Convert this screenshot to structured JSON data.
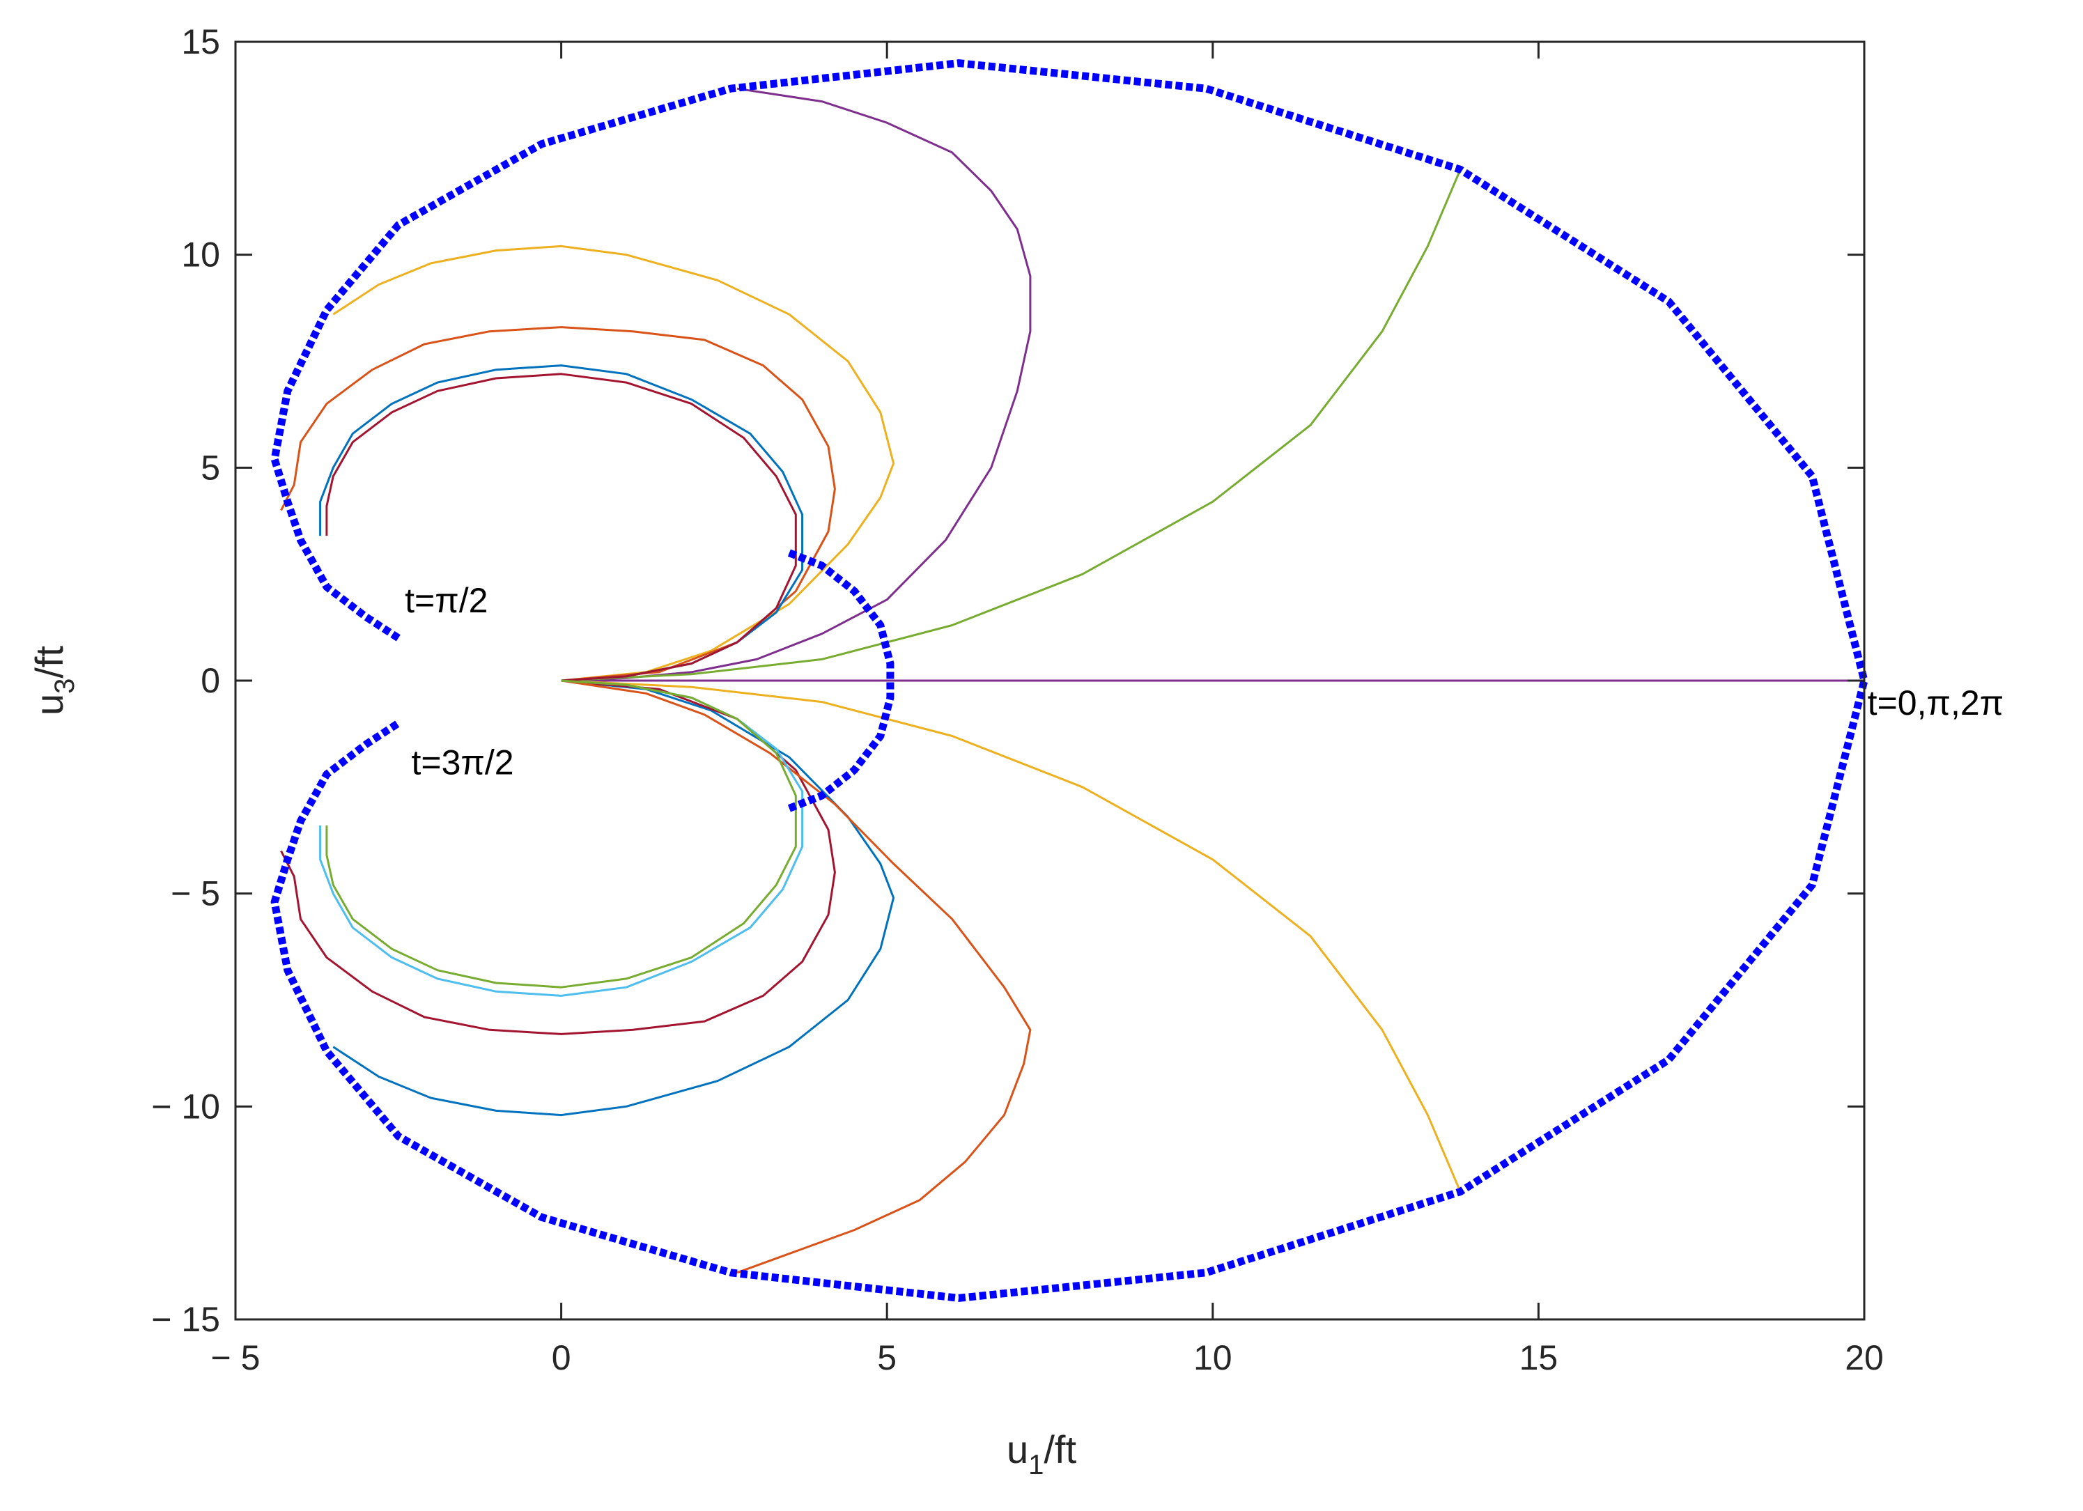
{
  "chart_data": {
    "type": "line",
    "xlabel": "u",
    "xlabel_sub": "1",
    "xlabel_unit": "/ft",
    "ylabel": "u",
    "ylabel_sub": "3",
    "ylabel_unit": "/ft",
    "xlim": [
      -5,
      20
    ],
    "ylim": [
      -15,
      15
    ],
    "x_ticks": [
      -5,
      0,
      5,
      10,
      15,
      20
    ],
    "y_ticks": [
      -15,
      -10,
      -5,
      0,
      5,
      10,
      15
    ],
    "x_tick_labels": [
      "− 5",
      "0",
      "5",
      "10",
      "15",
      "20"
    ],
    "y_tick_labels": [
      "− 15",
      "− 10",
      "− 5",
      "0",
      "5",
      "10",
      "15"
    ],
    "grid": false,
    "annotations": [
      {
        "text": "t=π/2",
        "x": -2.4,
        "y": 1.6
      },
      {
        "text": "t=3π/2",
        "x": -2.3,
        "y": -2.2
      },
      {
        "text": "t=0,π,2π",
        "x": 20.05,
        "y": -0.8
      }
    ],
    "series": [
      {
        "color": "#7E2F8E",
        "dashed": false,
        "points": [
          [
            0,
            0
          ],
          [
            0.5,
            0.03
          ],
          [
            1,
            0.06
          ],
          [
            2,
            0.2
          ],
          [
            3,
            0.5
          ],
          [
            4,
            1.1
          ],
          [
            5,
            1.9
          ],
          [
            5.9,
            3.3
          ],
          [
            6.6,
            5
          ],
          [
            7.0,
            6.8
          ],
          [
            7.2,
            8.2
          ],
          [
            7.2,
            9.5
          ],
          [
            7.0,
            10.6
          ],
          [
            6.6,
            11.5
          ],
          [
            6.0,
            12.4
          ],
          [
            5.0,
            13.1
          ],
          [
            4.0,
            13.6
          ],
          [
            2.7,
            13.9
          ]
        ]
      },
      {
        "color": "#7E2F8E",
        "dashed": false,
        "points": [
          [
            0,
            0
          ],
          [
            20,
            0
          ]
        ]
      },
      {
        "color": "#77AC30",
        "dashed": false,
        "points": [
          [
            0,
            0
          ],
          [
            2,
            0.15
          ],
          [
            4,
            0.5
          ],
          [
            6,
            1.3
          ],
          [
            8,
            2.5
          ],
          [
            10,
            4.2
          ],
          [
            11.5,
            6
          ],
          [
            12.6,
            8.2
          ],
          [
            13.3,
            10.2
          ],
          [
            13.8,
            12.0
          ]
        ]
      },
      {
        "color": "#EDB120",
        "dashed": false,
        "points": [
          [
            0,
            0
          ],
          [
            2,
            -0.15
          ],
          [
            4,
            -0.5
          ],
          [
            6,
            -1.3
          ],
          [
            8,
            -2.5
          ],
          [
            10,
            -4.2
          ],
          [
            11.5,
            -6
          ],
          [
            12.6,
            -8.2
          ],
          [
            13.3,
            -10.2
          ],
          [
            13.8,
            -12.0
          ]
        ]
      },
      {
        "color": "#EDB120",
        "dashed": false,
        "points": [
          [
            0,
            0
          ],
          [
            1.3,
            0.2
          ],
          [
            2.3,
            0.7
          ],
          [
            3.5,
            1.8
          ],
          [
            4.4,
            3.2
          ],
          [
            4.9,
            4.3
          ],
          [
            5.1,
            5.1
          ],
          [
            4.9,
            6.3
          ],
          [
            4.4,
            7.5
          ],
          [
            3.5,
            8.6
          ],
          [
            2.4,
            9.4
          ],
          [
            1.0,
            10.0
          ],
          [
            0,
            10.2
          ],
          [
            -1.0,
            10.1
          ],
          [
            -2.0,
            9.8
          ],
          [
            -2.8,
            9.3
          ],
          [
            -3.5,
            8.6
          ]
        ]
      },
      {
        "color": "#0072BD",
        "dashed": false,
        "points": [
          [
            0,
            0
          ],
          [
            1.3,
            -0.2
          ],
          [
            2.3,
            -0.7
          ],
          [
            3.5,
            -1.8
          ],
          [
            4.4,
            -3.2
          ],
          [
            4.9,
            -4.3
          ],
          [
            5.1,
            -5.1
          ],
          [
            4.9,
            -6.3
          ],
          [
            4.4,
            -7.5
          ],
          [
            3.5,
            -8.6
          ],
          [
            2.4,
            -9.4
          ],
          [
            1.0,
            -10.0
          ],
          [
            0,
            -10.2
          ],
          [
            -1.0,
            -10.1
          ],
          [
            -2.0,
            -9.8
          ],
          [
            -2.8,
            -9.3
          ],
          [
            -3.5,
            -8.6
          ]
        ]
      },
      {
        "color": "#D95319",
        "dashed": false,
        "points": [
          [
            0,
            0
          ],
          [
            1.5,
            0.2
          ],
          [
            2.7,
            0.9
          ],
          [
            3.6,
            2.1
          ],
          [
            4.1,
            3.5
          ],
          [
            4.2,
            4.5
          ],
          [
            4.1,
            5.5
          ],
          [
            3.7,
            6.6
          ],
          [
            3.1,
            7.4
          ],
          [
            2.2,
            8.0
          ],
          [
            1.1,
            8.2
          ],
          [
            0,
            8.3
          ],
          [
            -1.1,
            8.2
          ],
          [
            -2.1,
            7.9
          ],
          [
            -2.9,
            7.3
          ],
          [
            -3.6,
            6.5
          ],
          [
            -4.0,
            5.6
          ],
          [
            -4.1,
            4.6
          ],
          [
            -4.3,
            4.0
          ]
        ]
      },
      {
        "color": "#A2142F",
        "dashed": false,
        "points": [
          [
            0,
            0
          ],
          [
            1.5,
            -0.2
          ],
          [
            2.7,
            -0.9
          ],
          [
            3.6,
            -2.1
          ],
          [
            4.1,
            -3.5
          ],
          [
            4.2,
            -4.5
          ],
          [
            4.1,
            -5.5
          ],
          [
            3.7,
            -6.6
          ],
          [
            3.1,
            -7.4
          ],
          [
            2.2,
            -8.0
          ],
          [
            1.1,
            -8.2
          ],
          [
            0,
            -8.3
          ],
          [
            -1.1,
            -8.2
          ],
          [
            -2.1,
            -7.9
          ],
          [
            -2.9,
            -7.3
          ],
          [
            -3.6,
            -6.5
          ],
          [
            -4.0,
            -5.6
          ],
          [
            -4.1,
            -4.6
          ],
          [
            -4.3,
            -4.0
          ]
        ]
      },
      {
        "color": "#D95319",
        "dashed": false,
        "points": [
          [
            0,
            0
          ],
          [
            1.3,
            -0.3
          ],
          [
            2.2,
            -0.8
          ],
          [
            3.2,
            -1.7
          ],
          [
            4.2,
            -2.9
          ],
          [
            5.1,
            -4.3
          ],
          [
            6.0,
            -5.6
          ],
          [
            6.8,
            -7.2
          ],
          [
            7.2,
            -8.2
          ],
          [
            7.1,
            -9.0
          ],
          [
            6.8,
            -10.2
          ],
          [
            6.2,
            -11.3
          ],
          [
            5.5,
            -12.2
          ],
          [
            4.5,
            -12.9
          ],
          [
            3.6,
            -13.4
          ],
          [
            2.7,
            -13.9
          ]
        ]
      },
      {
        "color": "#0072BD",
        "dashed": false,
        "points": [
          [
            0,
            0
          ],
          [
            1,
            0.1
          ],
          [
            2,
            0.4
          ],
          [
            2.7,
            0.9
          ],
          [
            3.3,
            1.6
          ],
          [
            3.7,
            2.6
          ],
          [
            3.7,
            3.9
          ],
          [
            3.4,
            4.9
          ],
          [
            2.9,
            5.8
          ],
          [
            2.0,
            6.6
          ],
          [
            1.0,
            7.2
          ],
          [
            0,
            7.4
          ],
          [
            -1.0,
            7.3
          ],
          [
            -1.9,
            7.0
          ],
          [
            -2.6,
            6.5
          ],
          [
            -3.2,
            5.8
          ],
          [
            -3.5,
            5.0
          ],
          [
            -3.7,
            4.2
          ],
          [
            -3.7,
            3.4
          ]
        ]
      },
      {
        "color": "#4DBEEE",
        "dashed": false,
        "points": [
          [
            0,
            0
          ],
          [
            1,
            -0.1
          ],
          [
            2,
            -0.4
          ],
          [
            2.7,
            -0.9
          ],
          [
            3.3,
            -1.6
          ],
          [
            3.7,
            -2.6
          ],
          [
            3.7,
            -3.9
          ],
          [
            3.4,
            -4.9
          ],
          [
            2.9,
            -5.8
          ],
          [
            2.0,
            -6.6
          ],
          [
            1.0,
            -7.2
          ],
          [
            0,
            -7.4
          ],
          [
            -1.0,
            -7.3
          ],
          [
            -1.9,
            -7.0
          ],
          [
            -2.6,
            -6.5
          ],
          [
            -3.2,
            -5.8
          ],
          [
            -3.5,
            -5.0
          ],
          [
            -3.7,
            -4.2
          ],
          [
            -3.7,
            -3.4
          ]
        ]
      },
      {
        "color": "#A2142F",
        "dashed": false,
        "points": [
          [
            0,
            0
          ],
          [
            1,
            0.1
          ],
          [
            2,
            0.4
          ],
          [
            2.7,
            0.9
          ],
          [
            3.3,
            1.7
          ],
          [
            3.6,
            2.7
          ],
          [
            3.6,
            3.9
          ],
          [
            3.3,
            4.8
          ],
          [
            2.8,
            5.7
          ],
          [
            2.0,
            6.5
          ],
          [
            1.0,
            7.0
          ],
          [
            0,
            7.2
          ],
          [
            -1.0,
            7.1
          ],
          [
            -1.9,
            6.8
          ],
          [
            -2.6,
            6.3
          ],
          [
            -3.2,
            5.6
          ],
          [
            -3.5,
            4.8
          ],
          [
            -3.6,
            4.1
          ],
          [
            -3.6,
            3.4
          ]
        ]
      },
      {
        "color": "#77AC30",
        "dashed": false,
        "points": [
          [
            0,
            0
          ],
          [
            1,
            -0.1
          ],
          [
            2,
            -0.4
          ],
          [
            2.7,
            -0.9
          ],
          [
            3.3,
            -1.7
          ],
          [
            3.6,
            -2.7
          ],
          [
            3.6,
            -3.9
          ],
          [
            3.3,
            -4.8
          ],
          [
            2.8,
            -5.7
          ],
          [
            2.0,
            -6.5
          ],
          [
            1.0,
            -7.0
          ],
          [
            0,
            -7.2
          ],
          [
            -1.0,
            -7.1
          ],
          [
            -1.9,
            -6.8
          ],
          [
            -2.6,
            -6.3
          ],
          [
            -3.2,
            -5.6
          ],
          [
            -3.5,
            -4.8
          ],
          [
            -3.6,
            -4.1
          ],
          [
            -3.6,
            -3.4
          ]
        ]
      },
      {
        "color": "#0000FF",
        "dashed": true,
        "points": [
          [
            -2.5,
            1.0
          ],
          [
            -3.0,
            1.5
          ],
          [
            -3.6,
            2.2
          ],
          [
            -4.0,
            3.3
          ],
          [
            -4.2,
            4.2
          ],
          [
            -4.4,
            5.2
          ],
          [
            -4.2,
            6.8
          ],
          [
            -3.6,
            8.7
          ],
          [
            -2.5,
            10.7
          ],
          [
            -0.3,
            12.6
          ],
          [
            2.6,
            13.9
          ],
          [
            6.1,
            14.5
          ],
          [
            9.9,
            13.9
          ],
          [
            13.8,
            12.0
          ],
          [
            17.0,
            8.9
          ],
          [
            19.2,
            4.8
          ],
          [
            20.0,
            0.0
          ],
          [
            19.2,
            -4.8
          ],
          [
            17.0,
            -8.9
          ],
          [
            13.8,
            -12.0
          ],
          [
            9.9,
            -13.9
          ],
          [
            6.1,
            -14.5
          ],
          [
            2.6,
            -13.9
          ],
          [
            -0.3,
            -12.6
          ],
          [
            -2.5,
            -10.7
          ],
          [
            -3.6,
            -8.7
          ],
          [
            -4.2,
            -6.8
          ],
          [
            -4.4,
            -5.2
          ],
          [
            -4.2,
            -4.2
          ],
          [
            -4.0,
            -3.3
          ],
          [
            -3.6,
            -2.2
          ],
          [
            -3.0,
            -1.5
          ],
          [
            -2.5,
            -1.0
          ]
        ]
      },
      {
        "color": "#0000FF",
        "dashed": true,
        "points": [
          [
            3.5,
            3.0
          ],
          [
            4.0,
            2.7
          ],
          [
            4.5,
            2.1
          ],
          [
            4.9,
            1.3
          ],
          [
            5.05,
            0.4
          ],
          [
            5.05,
            -0.4
          ],
          [
            4.9,
            -1.3
          ],
          [
            4.5,
            -2.1
          ],
          [
            4.0,
            -2.7
          ],
          [
            3.5,
            -3.0
          ]
        ]
      }
    ]
  }
}
